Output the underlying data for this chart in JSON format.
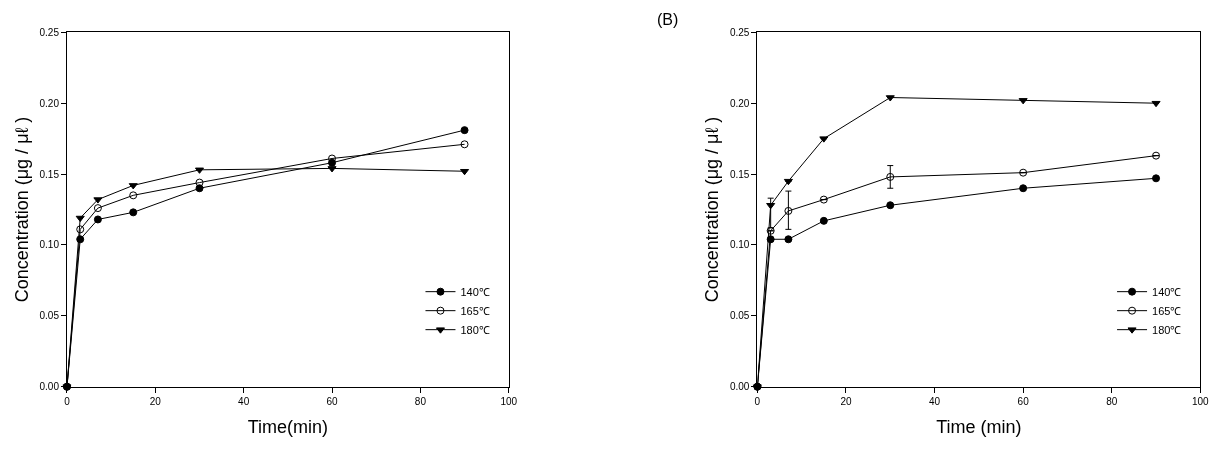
{
  "chart_data": [
    {
      "type": "line",
      "xlabel": "Time(min)",
      "ylabel": "Concentration (μg / μℓ )",
      "x": [
        0,
        3,
        7,
        15,
        30,
        60,
        90
      ],
      "xlim": [
        0,
        100
      ],
      "xticks": [
        0,
        20,
        40,
        60,
        80,
        100
      ],
      "ylim": [
        0,
        0.25
      ],
      "yticks": [
        {
          "value": 0,
          "label": "0.00"
        },
        {
          "value": 0.05,
          "label": "0.05"
        },
        {
          "value": 0.1,
          "label": "0.10"
        },
        {
          "value": 0.15,
          "label": "0.15"
        },
        {
          "value": 0.2,
          "label": "0.20"
        },
        {
          "value": 0.25,
          "label": "0.25"
        }
      ],
      "legend": "bottom right",
      "line_style": "solid",
      "series": [
        {
          "name": "140℃",
          "color": "#000000",
          "marker": "circle",
          "values": [
            0,
            0.104,
            0.118,
            0.123,
            0.14,
            0.158,
            0.181
          ]
        },
        {
          "name": "165℃",
          "color": "#000000",
          "marker": "circle-open",
          "values": [
            0,
            0.111,
            0.126,
            0.135,
            0.144,
            0.161,
            0.171
          ]
        },
        {
          "name": "180℃",
          "color": "#000000",
          "marker": "triangle-down",
          "values": [
            0,
            0.119,
            0.132,
            0.142,
            0.153,
            0.154,
            0.152
          ]
        }
      ]
    },
    {
      "type": "line",
      "xlabel": "Time (min)",
      "ylabel": "Concentration (μg / μℓ )",
      "annotations": [
        "(B)"
      ],
      "x": [
        0,
        3,
        7,
        15,
        30,
        60,
        90
      ],
      "xlim": [
        0,
        100
      ],
      "xticks": [
        0,
        20,
        40,
        60,
        80,
        100
      ],
      "ylim": [
        0,
        0.25
      ],
      "yticks": [
        {
          "value": 0,
          "label": "0.00"
        },
        {
          "value": 0.05,
          "label": "0.05"
        },
        {
          "value": 0.1,
          "label": "0.10"
        },
        {
          "value": 0.15,
          "label": "0.15"
        },
        {
          "value": 0.2,
          "label": "0.20"
        },
        {
          "value": 0.25,
          "label": "0.25"
        }
      ],
      "legend": "bottom right",
      "line_style": "solid",
      "series": [
        {
          "name": "140℃",
          "color": "#000000",
          "marker": "circle",
          "values": [
            0,
            0.104,
            0.104,
            0.117,
            0.128,
            0.14,
            0.147
          ]
        },
        {
          "name": "165℃",
          "color": "#000000",
          "marker": "circle-open",
          "values": [
            0,
            0.11,
            0.124,
            0.132,
            0.148,
            0.151,
            0.163
          ],
          "errors": [
            null,
            null,
            [
              0.111,
              0.138
            ],
            null,
            [
              0.14,
              0.156
            ],
            null,
            null
          ]
        },
        {
          "name": "180℃",
          "color": "#000000",
          "marker": "triangle-down",
          "values": [
            0,
            0.128,
            0.145,
            0.175,
            0.204,
            0.202,
            0.2
          ],
          "errors": [
            null,
            [
              0.112,
              0.133
            ],
            null,
            null,
            null,
            null,
            null
          ]
        }
      ]
    }
  ]
}
